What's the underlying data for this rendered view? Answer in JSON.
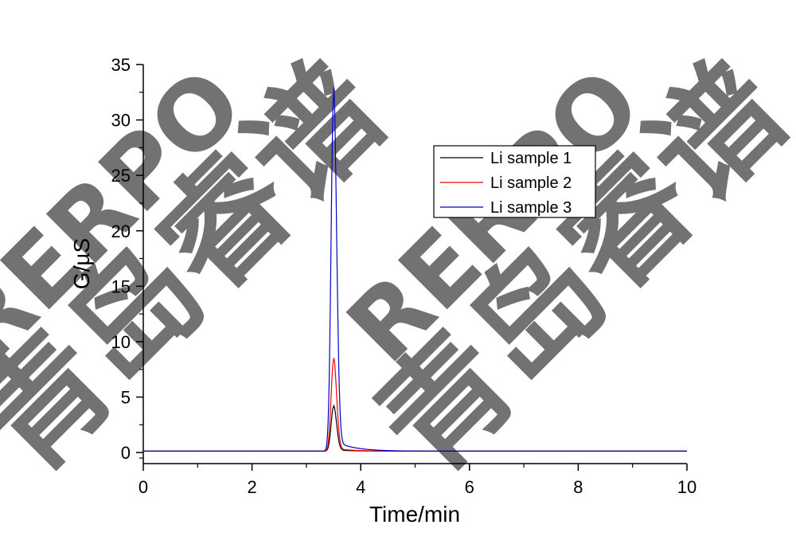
{
  "chart_data": {
    "type": "line",
    "xlabel": "Time/min",
    "ylabel": "G/µS",
    "xlim": [
      0,
      10
    ],
    "ylim": [
      -1,
      35
    ],
    "x_ticks": [
      0,
      2,
      4,
      6,
      8,
      10
    ],
    "y_ticks": [
      0,
      5,
      10,
      15,
      20,
      25,
      30,
      35
    ],
    "grid": false,
    "legend_position": "upper-right",
    "series": [
      {
        "name": "Li sample 1",
        "color": "#000000",
        "baseline": 0.12,
        "peak_time": 3.5,
        "peak_height": 4.0
      },
      {
        "name": "Li sample 2",
        "color": "#ff0000",
        "baseline": 0.12,
        "peak_time": 3.5,
        "peak_height": 8.2
      },
      {
        "name": "Li sample 3",
        "color": "#0000cc",
        "baseline": 0.12,
        "peak_time": 3.5,
        "peak_height": 32.0
      }
    ]
  },
  "watermark": {
    "latin": "RERPO",
    "chinese": "青岛睿谱",
    "color": "#9fd8f5"
  }
}
